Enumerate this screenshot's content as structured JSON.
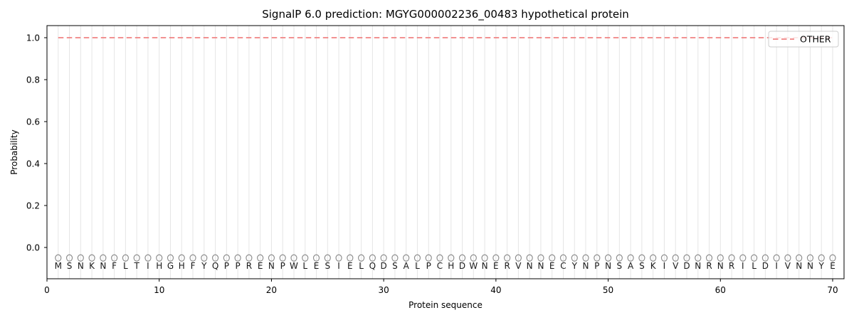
{
  "chart_data": {
    "type": "line",
    "title": "SignalP 6.0 prediction: MGYG000002236_00483 hypothetical protein",
    "xlabel": "Protein sequence",
    "ylabel": "Probability",
    "x_ticks": [
      0,
      10,
      20,
      30,
      40,
      50,
      60,
      70
    ],
    "y_ticks": [
      0.0,
      0.2,
      0.4,
      0.6,
      0.8,
      1.0
    ],
    "y_tick_labels": [
      "0.0",
      "0.2",
      "0.4",
      "0.6",
      "0.8",
      "1.0"
    ],
    "xlim": [
      0,
      71
    ],
    "ylim": [
      -0.15,
      1.057
    ],
    "grid": "vertical gridline at each residue position",
    "legend": {
      "position": "upper right",
      "entries": [
        {
          "label": "OTHER",
          "color": "#f08282",
          "linestyle": "dashed"
        }
      ]
    },
    "series": [
      {
        "name": "OTHER",
        "shape": "horizontal-line",
        "y_constant": 1.0,
        "x_start": 1,
        "x_end": 70,
        "color": "#f08282",
        "linestyle": "dashed"
      }
    ],
    "sequence": [
      "M",
      "S",
      "N",
      "K",
      "N",
      "F",
      "L",
      "T",
      "I",
      "H",
      "G",
      "H",
      "F",
      "Y",
      "Q",
      "P",
      "P",
      "R",
      "E",
      "N",
      "P",
      "W",
      "L",
      "E",
      "S",
      "I",
      "E",
      "L",
      "Q",
      "D",
      "S",
      "A",
      "L",
      "P",
      "C",
      "H",
      "D",
      "W",
      "N",
      "E",
      "R",
      "V",
      "N",
      "N",
      "E",
      "C",
      "Y",
      "N",
      "P",
      "N",
      "S",
      "A",
      "S",
      "K",
      "I",
      "V",
      "D",
      "N",
      "R",
      "N",
      "R",
      "I",
      "L",
      "D",
      "I",
      "V",
      "N",
      "N",
      "Y",
      "E"
    ],
    "sequence_markers": {
      "symbol": "open-circle",
      "y": -0.05,
      "color": "#909090"
    },
    "colors": {
      "line": "#f08282",
      "grid": "#e5e5e5",
      "spine": "#000000",
      "marker": "#909090",
      "background": "#ffffff"
    }
  }
}
